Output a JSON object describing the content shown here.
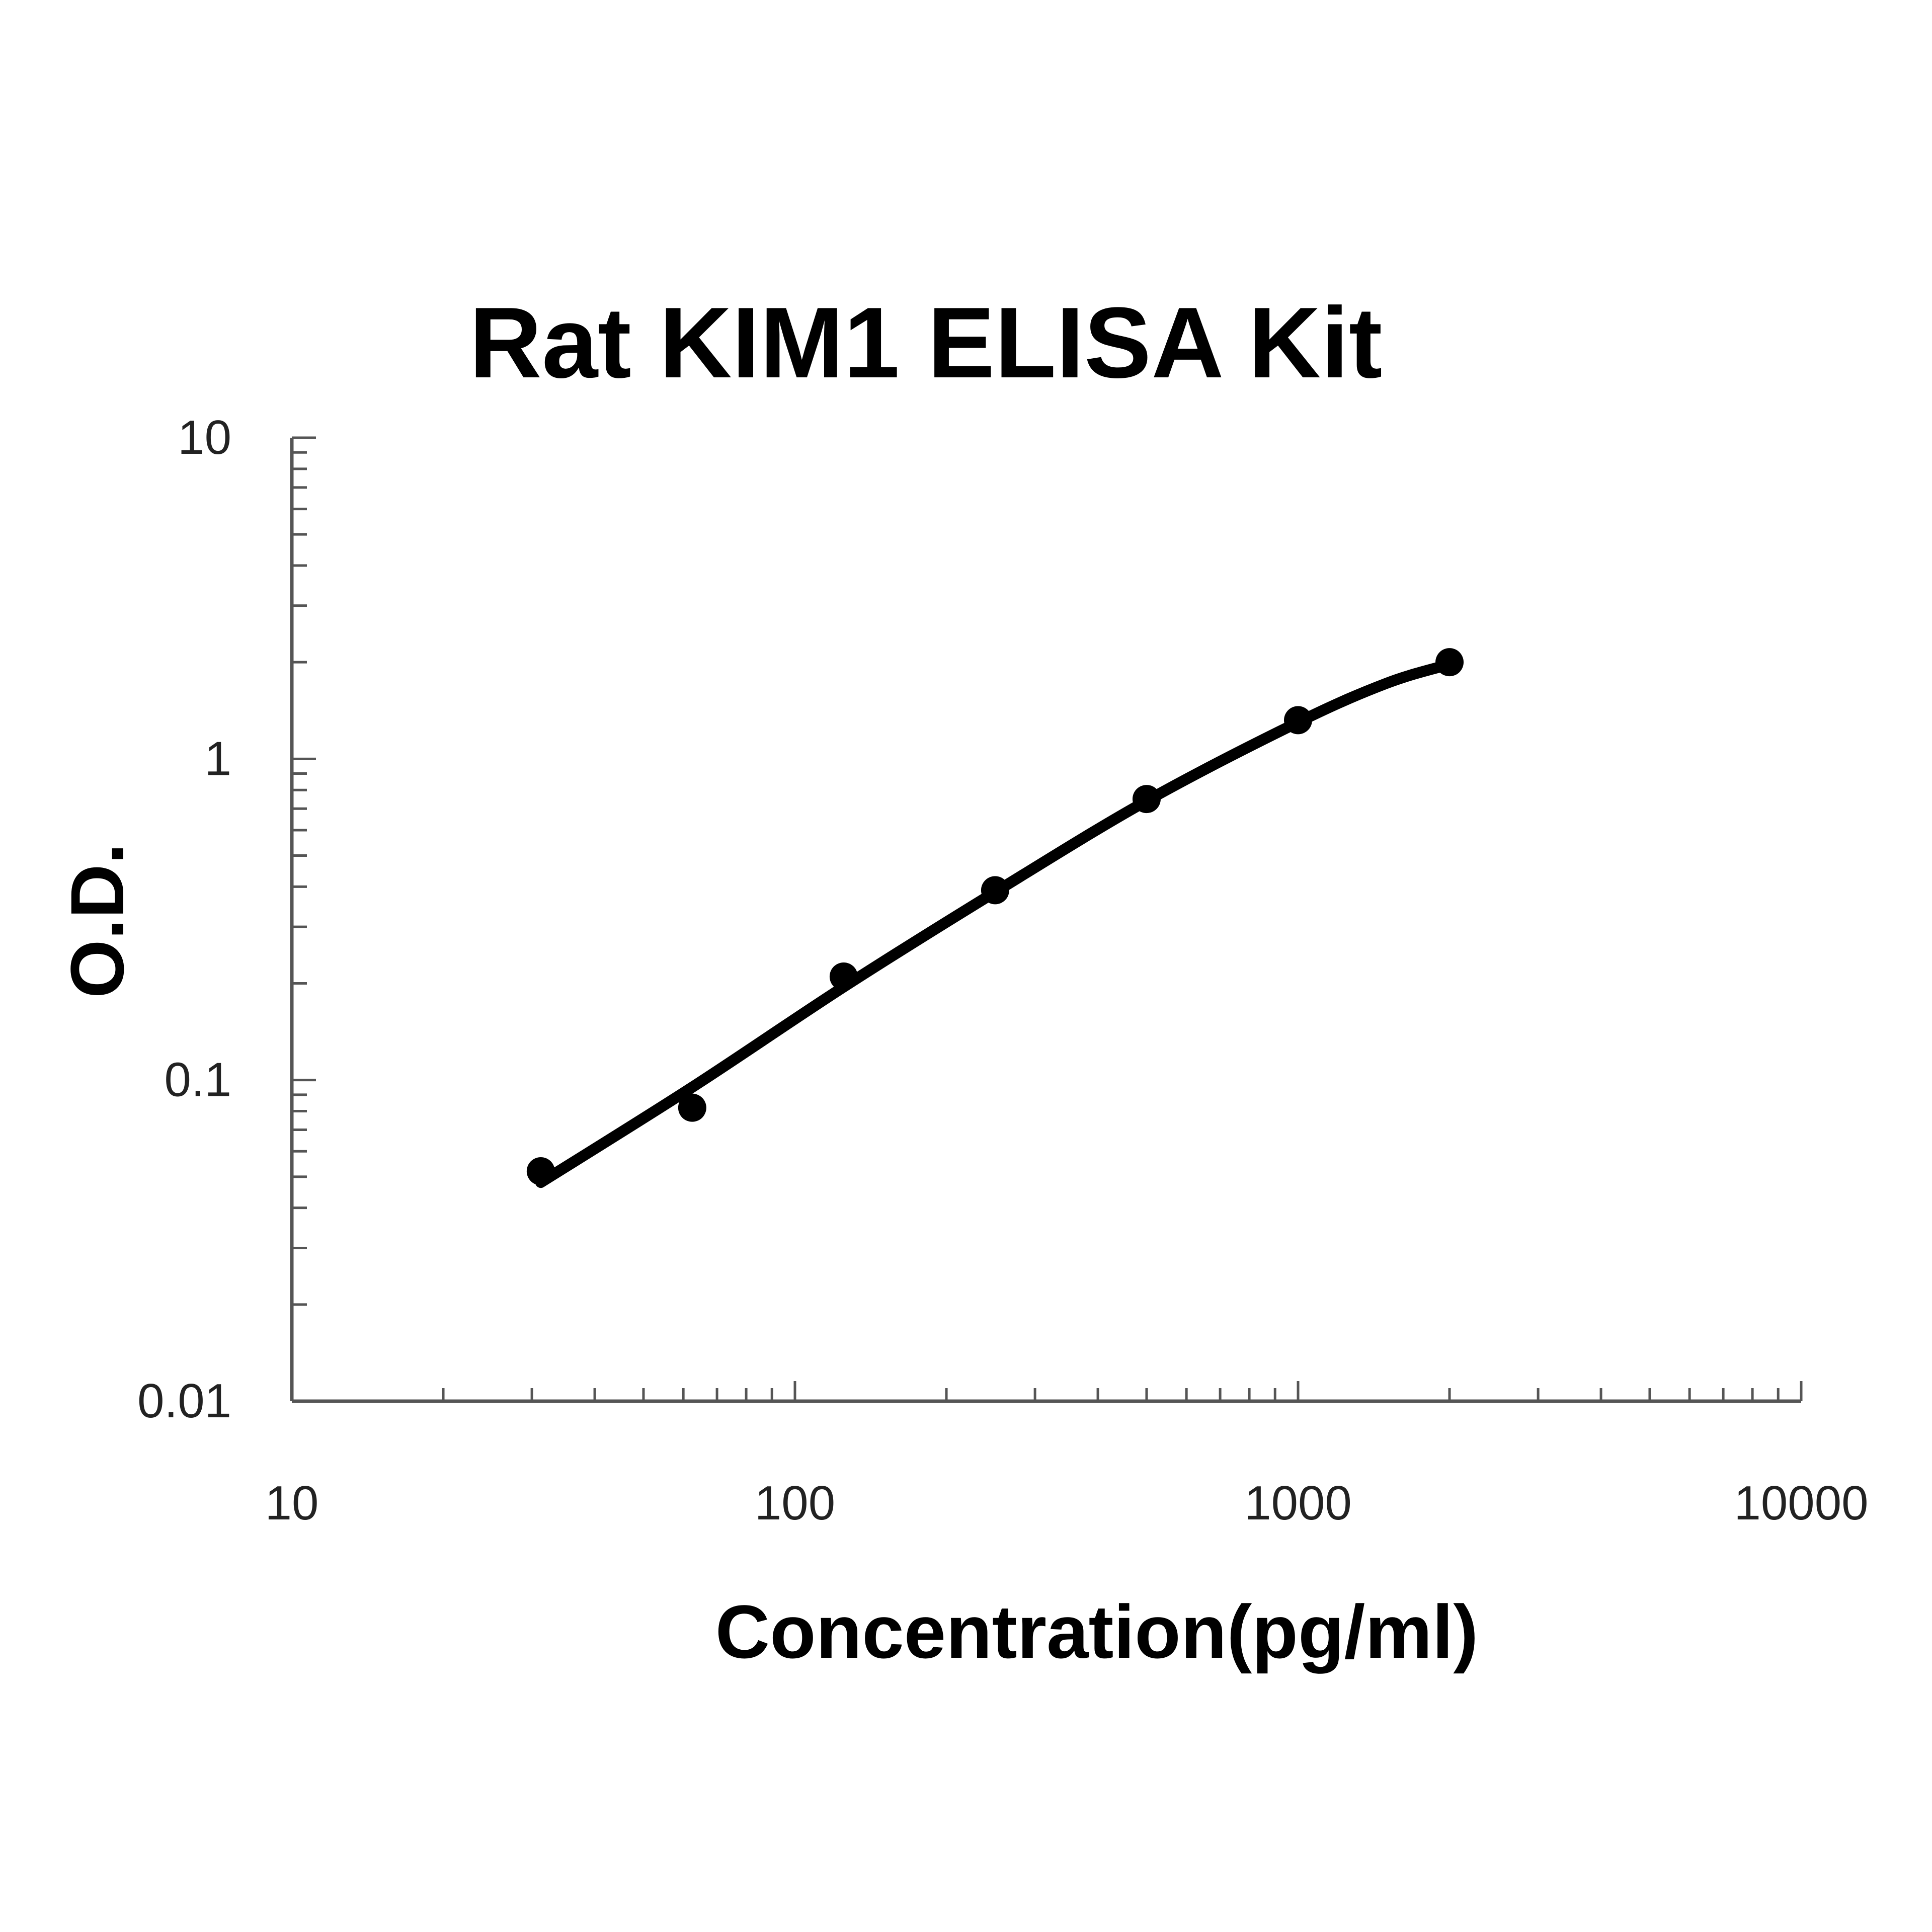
{
  "chart_data": {
    "type": "scatter",
    "title": "Rat KIM1 ELISA Kit",
    "xlabel": "Concentration(pg/ml)",
    "ylabel": "O.D.",
    "x_scale": "log",
    "y_scale": "log",
    "xlim": [
      10,
      10000
    ],
    "ylim": [
      0.01,
      10
    ],
    "x_ticks": [
      "10",
      "100",
      "1000",
      "10000"
    ],
    "y_ticks": [
      "0.01",
      "0.1",
      "1",
      "10"
    ],
    "grid": false,
    "legend": "none",
    "series": [
      {
        "points": [
          {
            "x": 31.25,
            "y": 0.052
          },
          {
            "x": 62.5,
            "y": 0.082
          },
          {
            "x": 125,
            "y": 0.21
          },
          {
            "x": 250,
            "y": 0.39
          },
          {
            "x": 500,
            "y": 0.75
          },
          {
            "x": 1000,
            "y": 1.32
          },
          {
            "x": 2000,
            "y": 2.0
          }
        ],
        "fit_curve": [
          {
            "x": 31.25,
            "y": 0.048
          },
          {
            "x": 62.5,
            "y": 0.095
          },
          {
            "x": 125,
            "y": 0.195
          },
          {
            "x": 250,
            "y": 0.385
          },
          {
            "x": 500,
            "y": 0.74
          },
          {
            "x": 1000,
            "y": 1.3
          },
          {
            "x": 1500,
            "y": 1.72
          },
          {
            "x": 2000,
            "y": 1.97
          }
        ],
        "color": "#000000"
      }
    ]
  }
}
